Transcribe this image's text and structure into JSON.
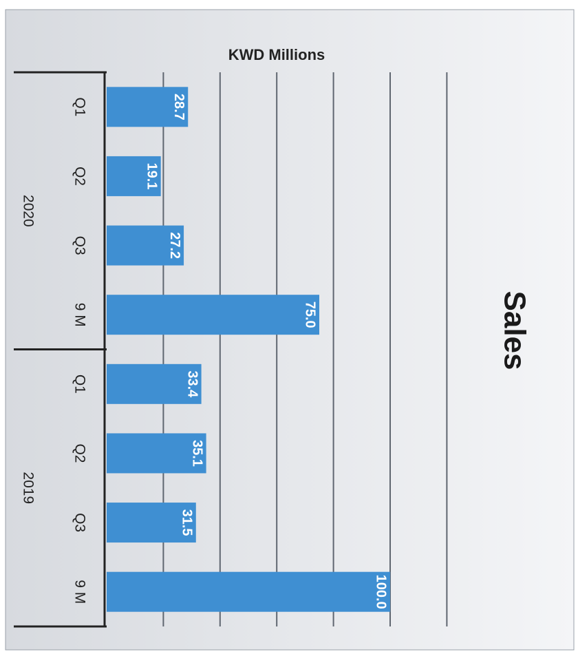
{
  "chart_data": {
    "type": "bar",
    "title": "Sales",
    "axis_label": "KWD Millions",
    "groups": [
      {
        "name": "2020",
        "categories": [
          "Q1",
          "Q2",
          "Q3",
          "9 M"
        ],
        "values": [
          28.7,
          19.1,
          27.2,
          75.0
        ],
        "value_labels": [
          "28.7",
          "19.1",
          "27.2",
          "75.0"
        ]
      },
      {
        "name": "2019",
        "categories": [
          "Q1",
          "Q2",
          "Q3",
          "9 M"
        ],
        "values": [
          33.4,
          35.1,
          31.5,
          100.0
        ],
        "value_labels": [
          "33.4",
          "35.1",
          "31.5",
          "100.0"
        ]
      }
    ],
    "color": "#3f8fd2",
    "ylim": [
      0,
      135
    ],
    "yticks": [
      20,
      40,
      60,
      80,
      100,
      120
    ],
    "grid": true
  }
}
